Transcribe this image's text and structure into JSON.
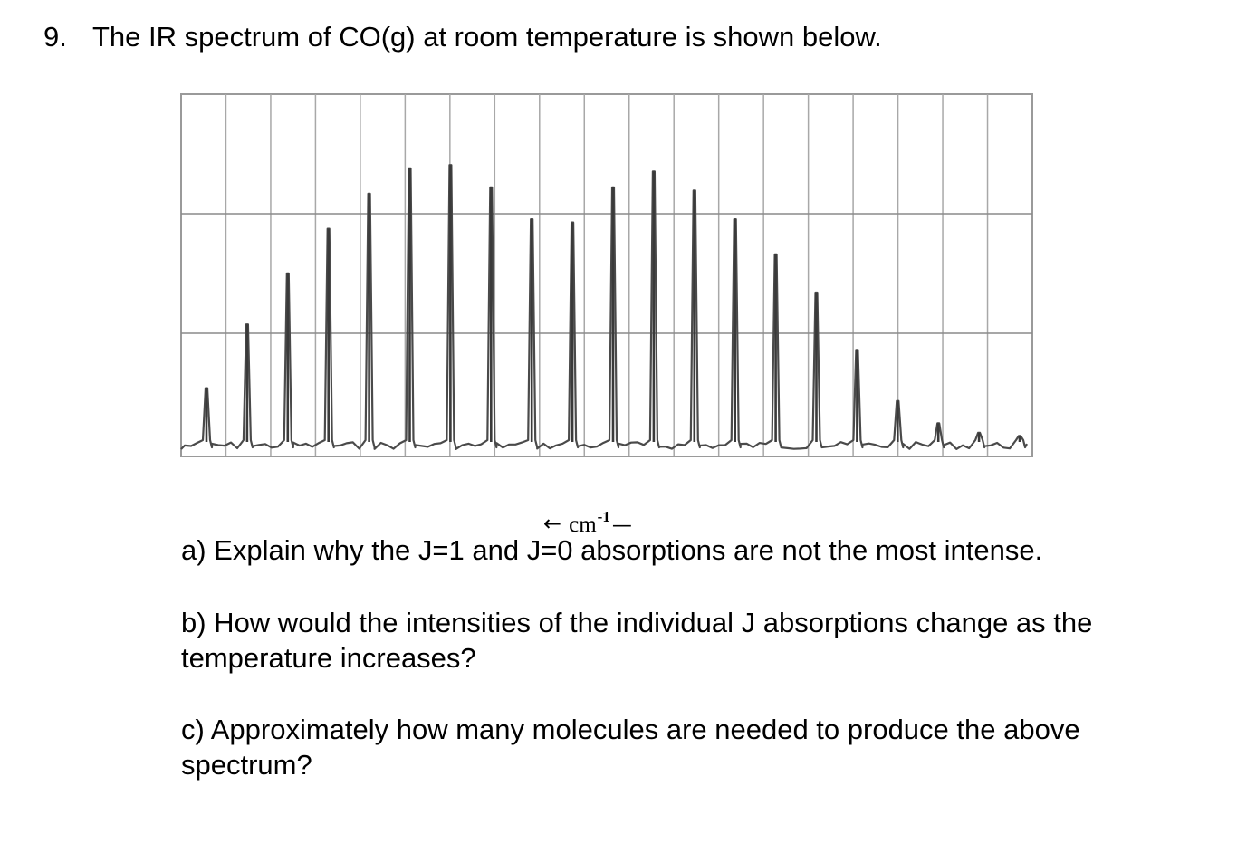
{
  "question": {
    "number": "9.",
    "text": "The IR spectrum of CO(g) at room temperature is shown below."
  },
  "spectrum": {
    "x_axis_arrow": "←",
    "x_axis_unit": "cm",
    "x_axis_exponent": "-1",
    "x_axis_dash": "—"
  },
  "chart_data": {
    "type": "line",
    "title": "",
    "xlabel": "cm-1",
    "ylabel": "",
    "grid": true,
    "x": [
      1,
      2,
      3,
      4,
      5,
      6,
      7,
      8,
      9,
      10,
      11,
      12,
      13,
      14,
      15,
      16,
      17,
      18,
      19,
      20,
      21
    ],
    "series": [
      {
        "values": [
          0.18,
          0.38,
          0.54,
          0.68,
          0.79,
          0.87,
          0.88,
          0.81,
          0.71,
          0.7,
          0.81,
          0.86,
          0.8,
          0.71,
          0.6,
          0.48,
          0.3,
          0.14,
          0.07,
          0.04,
          0.03
        ]
      }
    ]
  },
  "parts": {
    "a": "a) Explain why the J=1 and J=0 absorptions are not the most intense.",
    "b": "b) How would the intensities of the individual J absorptions change as the temperature increases?",
    "c": "c) Approximately how many molecules are needed to produce the above spectrum?"
  }
}
